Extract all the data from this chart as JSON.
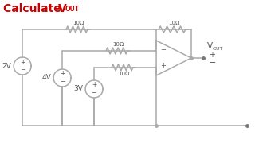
{
  "title_calculate": "Calculate ",
  "title_vout_big": "V",
  "title_vout_sub": "OUT",
  "title_color": "#cc0000",
  "bg_color": "#ffffff",
  "line_color": "#aaaaaa",
  "text_color": "#555555",
  "resistor_label": "10Ω",
  "source_labels": [
    "2V",
    "4V",
    "3V"
  ],
  "vout_label": "V",
  "vout_sub": "OUT",
  "plus_sym": "+",
  "minus_sym": "−",
  "opamp_minus": "−",
  "opamp_plus": "+"
}
